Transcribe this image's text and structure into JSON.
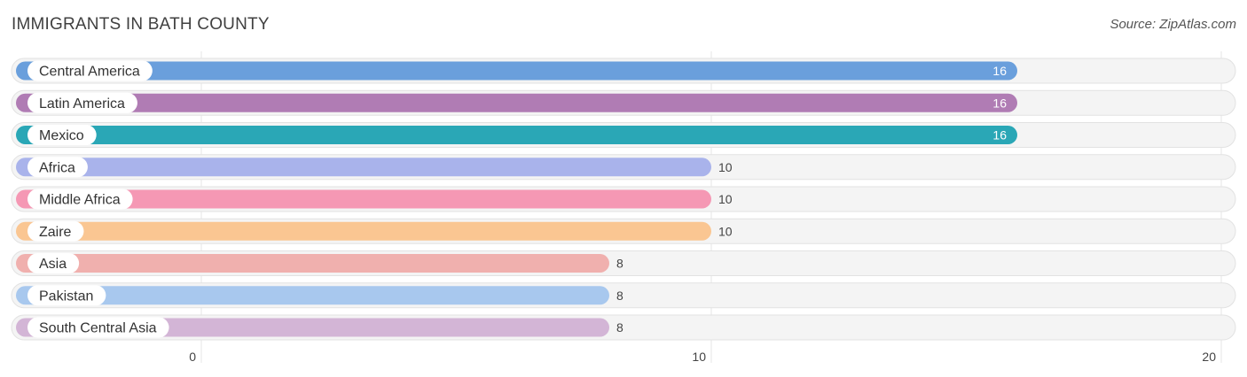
{
  "title": "IMMIGRANTS IN BATH COUNTY",
  "source": "Source: ZipAtlas.com",
  "chart_data": {
    "type": "bar",
    "orientation": "horizontal",
    "title": "IMMIGRANTS IN BATH COUNTY",
    "xlim": [
      0,
      20
    ],
    "ticks": [
      0,
      10,
      20
    ],
    "grid": true,
    "categories": [
      "Central America",
      "Latin America",
      "Mexico",
      "Africa",
      "Middle Africa",
      "Zaire",
      "Asia",
      "Pakistan",
      "South Central Asia"
    ],
    "values": [
      16,
      16,
      16,
      10,
      10,
      10,
      8,
      8,
      8
    ],
    "colors": [
      "#6a9fdc",
      "#b07cb4",
      "#2aa7b6",
      "#a9b3eb",
      "#f598b4",
      "#fac692",
      "#f0b0ae",
      "#a8c8ee",
      "#d3b5d6"
    ],
    "value_labels_inside": [
      true,
      true,
      true,
      false,
      false,
      false,
      false,
      false,
      false
    ]
  }
}
